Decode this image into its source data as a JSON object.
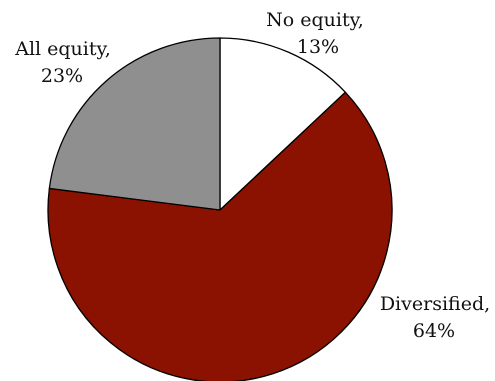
{
  "chart_data": {
    "type": "pie",
    "title": "",
    "start": "top",
    "direction": "clockwise",
    "slices": [
      {
        "label": "No equity",
        "value": 13,
        "value_text": "13%",
        "color": "#ffffff"
      },
      {
        "label": "Diversified",
        "value": 64,
        "value_text": "64%",
        "color": "#8b1200"
      },
      {
        "label": "All equity",
        "value": 23,
        "value_text": "23%",
        "color": "#8f8f8f"
      }
    ],
    "slice_border_color": "#000000",
    "legend": "none",
    "labels": "outside slices, name and percentage on two lines"
  }
}
